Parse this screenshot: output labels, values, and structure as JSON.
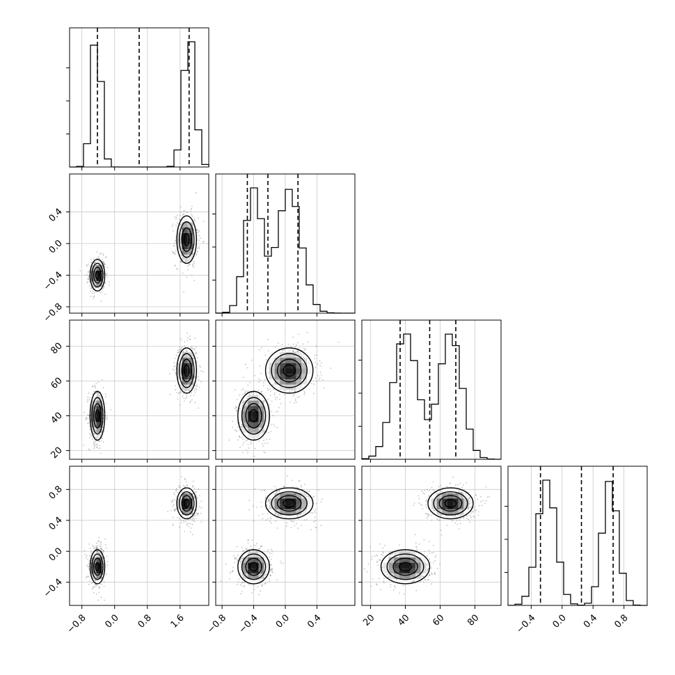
{
  "chart_data": {
    "type": "corner",
    "n_params": 4,
    "colors": {
      "axes": "#000000",
      "grid": "#c8c8c8",
      "points": "#777777",
      "hist": "#000000"
    },
    "params": [
      {
        "range": [
          -1.1,
          2.3
        ],
        "ticks": [
          -0.8,
          0.0,
          0.8,
          1.6
        ],
        "tick_labels": [
          "−0.8",
          "0.0",
          "0.8",
          "1.6"
        ],
        "quantiles": [
          -0.42,
          0.6,
          1.82
        ],
        "modes": [
          {
            "mu": -0.45,
            "sd": 0.12,
            "w": 0.5
          },
          {
            "mu": 1.82,
            "sd": 0.14,
            "w": 0.5
          }
        ]
      },
      {
        "range": [
          -0.88,
          0.88
        ],
        "ticks": [
          -0.8,
          -0.4,
          0.0,
          0.4
        ],
        "tick_labels": [
          "−0.8",
          "−0.4",
          "0.0",
          "0.4"
        ],
        "quantiles": [
          -0.48,
          -0.22,
          0.16
        ],
        "modes": [
          {
            "mu": -0.4,
            "sd": 0.11,
            "w": 0.5
          },
          {
            "mu": 0.05,
            "sd": 0.15,
            "w": 0.5
          }
        ]
      },
      {
        "range": [
          15,
          95
        ],
        "ticks": [
          20,
          40,
          60,
          80
        ],
        "tick_labels": [
          "20",
          "40",
          "60",
          "80"
        ],
        "quantiles": [
          37,
          54,
          69
        ],
        "modes": [
          {
            "mu": 40,
            "sd": 7,
            "w": 0.5
          },
          {
            "mu": 66,
            "sd": 6.5,
            "w": 0.5
          }
        ]
      },
      {
        "range": [
          -0.7,
          1.1
        ],
        "ticks": [
          -0.4,
          0.0,
          0.4,
          0.8
        ],
        "tick_labels": [
          "−0.4",
          "0.0",
          "0.4",
          "0.8"
        ],
        "quantiles": [
          -0.28,
          0.25,
          0.66
        ],
        "modes": [
          {
            "mu": -0.2,
            "sd": 0.12,
            "w": 0.5
          },
          {
            "mu": 0.62,
            "sd": 0.1,
            "w": 0.5
          }
        ]
      }
    ],
    "clusters": [
      {
        "center": [
          -0.42,
          -0.4,
          40,
          -0.2
        ],
        "sd": [
          0.09,
          0.1,
          7,
          0.11
        ],
        "weight": 0.5
      },
      {
        "center": [
          1.76,
          0.05,
          66,
          0.62
        ],
        "sd": [
          0.12,
          0.15,
          6.5,
          0.1
        ],
        "weight": 0.5
      }
    ],
    "hist_bins": 20,
    "grid": true
  }
}
